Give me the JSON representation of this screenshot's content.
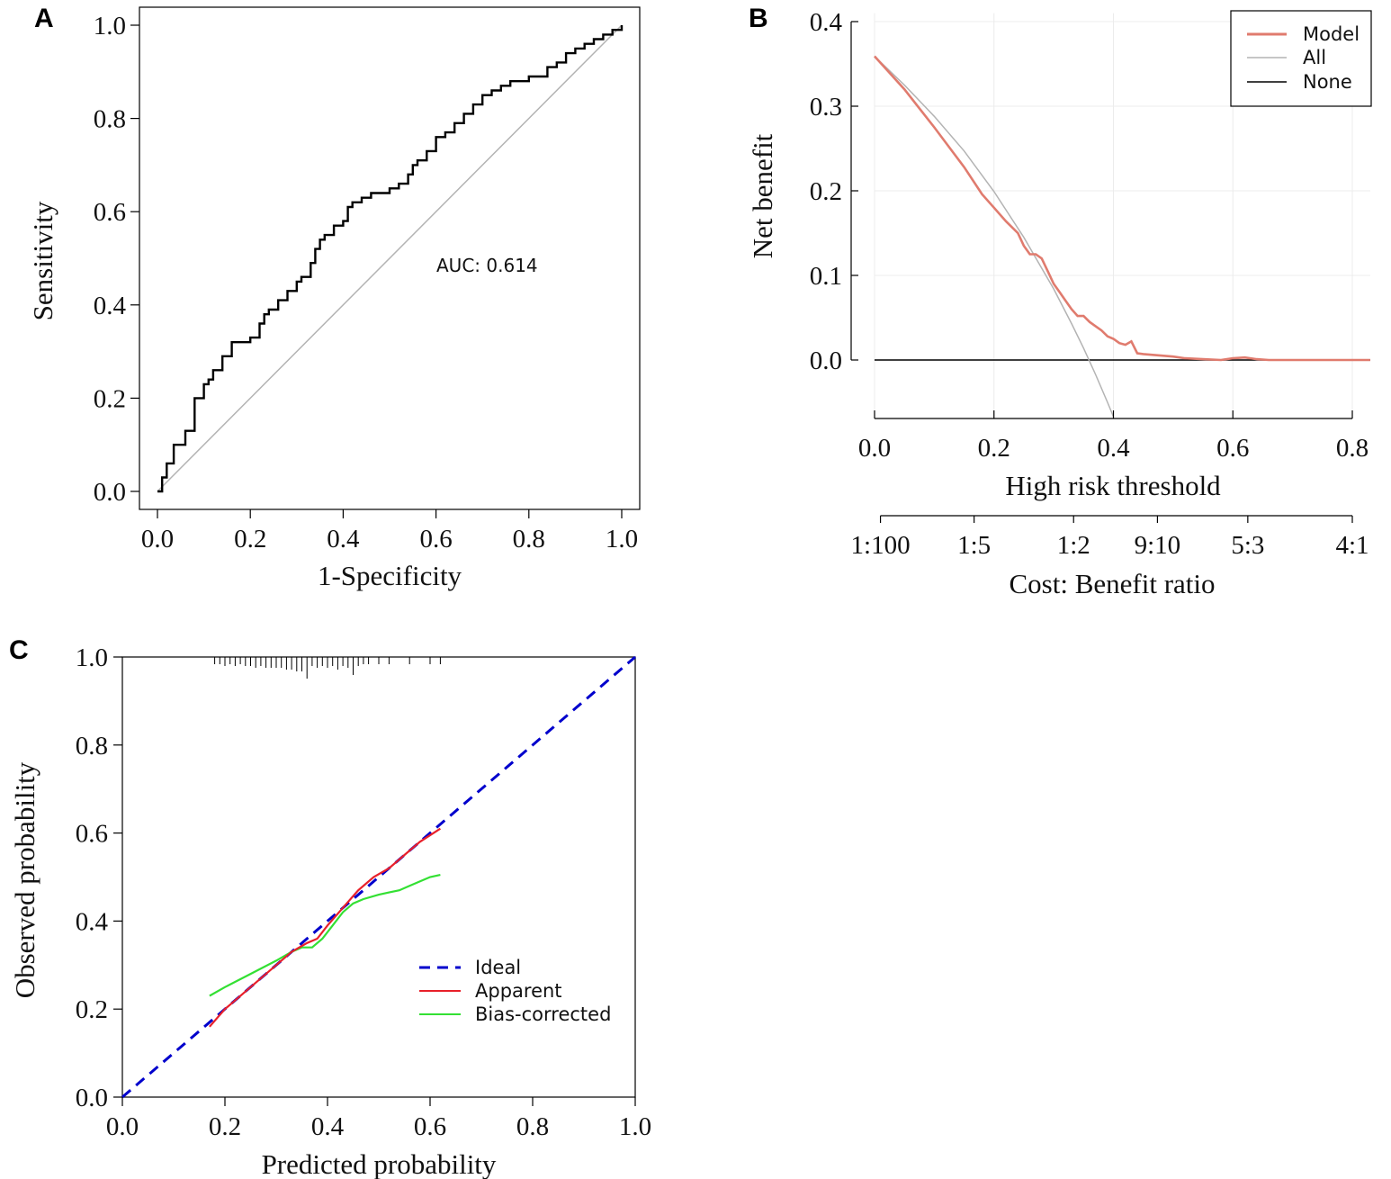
{
  "panels": {
    "A": {
      "letter": "A",
      "chart_data": {
        "type": "line",
        "xlabel": "1-Specificity",
        "ylabel": "Sensitivity",
        "xlim": [
          0,
          1
        ],
        "ylim": [
          0,
          1
        ],
        "xticks": [
          "0.0",
          "0.2",
          "0.4",
          "0.6",
          "0.8",
          "1.0"
        ],
        "yticks": [
          "0.0",
          "0.2",
          "0.4",
          "0.6",
          "0.8",
          "1.0"
        ],
        "annotation": "AUC: 0.614",
        "reference_line": {
          "x": [
            0,
            1
          ],
          "y": [
            0,
            1
          ],
          "color": "#b3b3b3"
        },
        "roc": {
          "color": "#000000",
          "x": [
            0,
            0.01,
            0.02,
            0.035,
            0.04,
            0.06,
            0.08,
            0.09,
            0.1,
            0.11,
            0.12,
            0.13,
            0.14,
            0.16,
            0.17,
            0.2,
            0.22,
            0.23,
            0.24,
            0.26,
            0.28,
            0.3,
            0.31,
            0.33,
            0.34,
            0.35,
            0.36,
            0.38,
            0.39,
            0.4,
            0.41,
            0.42,
            0.44,
            0.46,
            0.48,
            0.5,
            0.52,
            0.54,
            0.55,
            0.56,
            0.58,
            0.6,
            0.62,
            0.64,
            0.66,
            0.68,
            0.7,
            0.72,
            0.74,
            0.76,
            0.8,
            0.82,
            0.84,
            0.86,
            0.88,
            0.9,
            0.92,
            0.94,
            0.96,
            0.98,
            1.0
          ],
          "y": [
            0,
            0.03,
            0.06,
            0.1,
            0.1,
            0.13,
            0.2,
            0.2,
            0.23,
            0.24,
            0.26,
            0.26,
            0.29,
            0.32,
            0.32,
            0.33,
            0.36,
            0.38,
            0.39,
            0.41,
            0.43,
            0.45,
            0.46,
            0.49,
            0.52,
            0.54,
            0.55,
            0.57,
            0.57,
            0.58,
            0.61,
            0.62,
            0.63,
            0.64,
            0.64,
            0.65,
            0.66,
            0.68,
            0.7,
            0.71,
            0.73,
            0.76,
            0.77,
            0.79,
            0.81,
            0.83,
            0.85,
            0.86,
            0.87,
            0.88,
            0.89,
            0.89,
            0.91,
            0.92,
            0.94,
            0.95,
            0.96,
            0.97,
            0.98,
            0.99,
            1.0
          ]
        }
      }
    },
    "B": {
      "letter": "B",
      "chart_data": {
        "type": "line",
        "xlabel": "High risk threshold",
        "ylabel": "Net benefit",
        "xlim": [
          0,
          0.83
        ],
        "ylim": [
          -0.07,
          0.41
        ],
        "xticks": [
          "0.0",
          "0.2",
          "0.4",
          "0.6",
          "0.8"
        ],
        "yticks": [
          "0.0",
          "0.1",
          "0.2",
          "0.3",
          "0.4"
        ],
        "grid": true,
        "legend": {
          "position": "top-right",
          "entries": [
            "Model",
            "All",
            "None"
          ]
        },
        "secondary_axis": {
          "label": "Cost: Benefit ratio",
          "ticks": [
            {
              "label": "1:100",
              "threshold": 0.0099
            },
            {
              "label": "1:5",
              "threshold": 0.1667
            },
            {
              "label": "1:2",
              "threshold": 0.3333
            },
            {
              "label": "9:10",
              "threshold": 0.4737
            },
            {
              "label": "5:3",
              "threshold": 0.625
            },
            {
              "label": "4:1",
              "threshold": 0.8
            }
          ]
        },
        "series": [
          {
            "name": "Model",
            "color": "#e07b6e",
            "x": [
              0,
              0.05,
              0.1,
              0.15,
              0.18,
              0.2,
              0.22,
              0.24,
              0.25,
              0.26,
              0.27,
              0.28,
              0.29,
              0.3,
              0.31,
              0.32,
              0.33,
              0.34,
              0.35,
              0.36,
              0.37,
              0.38,
              0.39,
              0.4,
              0.41,
              0.42,
              0.43,
              0.44,
              0.45,
              0.5,
              0.52,
              0.55,
              0.58,
              0.6,
              0.62,
              0.64,
              0.66,
              0.7,
              0.75,
              0.8,
              0.83
            ],
            "y": [
              0.359,
              0.32,
              0.275,
              0.228,
              0.196,
              0.18,
              0.164,
              0.15,
              0.135,
              0.125,
              0.125,
              0.12,
              0.105,
              0.09,
              0.08,
              0.07,
              0.06,
              0.052,
              0.052,
              0.045,
              0.04,
              0.035,
              0.028,
              0.025,
              0.02,
              0.018,
              0.022,
              0.008,
              0.007,
              0.004,
              0.002,
              0.001,
              0,
              0.002,
              0.003,
              0.001,
              0,
              0,
              0,
              0,
              0
            ]
          },
          {
            "name": "All",
            "color": "#b3b3b3",
            "x": [
              0,
              0.05,
              0.1,
              0.15,
              0.2,
              0.25,
              0.3,
              0.33,
              0.35,
              0.37,
              0.39,
              0.4
            ],
            "y": [
              0.359,
              0.325,
              0.288,
              0.247,
              0.199,
              0.145,
              0.084,
              0.043,
              0.014,
              -0.017,
              -0.05,
              -0.067
            ]
          },
          {
            "name": "None",
            "color": "#000000",
            "x": [
              0,
              0.83
            ],
            "y": [
              0,
              0
            ]
          }
        ]
      }
    },
    "C": {
      "letter": "C",
      "chart_data": {
        "type": "line",
        "xlabel": "Predicted probability",
        "ylabel": "Observed probability",
        "xlim": [
          0,
          1
        ],
        "ylim": [
          0,
          1
        ],
        "xticks": [
          "0.0",
          "0.2",
          "0.4",
          "0.6",
          "0.8",
          "1.0"
        ],
        "yticks": [
          "0.0",
          "0.2",
          "0.4",
          "0.6",
          "0.8",
          "1.0"
        ],
        "legend": {
          "position": "center-right",
          "entries": [
            "Ideal",
            "Apparent",
            "Bias-corrected"
          ]
        },
        "rug_x": [
          0.18,
          0.19,
          0.2,
          0.21,
          0.22,
          0.23,
          0.24,
          0.25,
          0.26,
          0.27,
          0.28,
          0.29,
          0.3,
          0.31,
          0.32,
          0.33,
          0.34,
          0.35,
          0.36,
          0.37,
          0.38,
          0.39,
          0.4,
          0.41,
          0.42,
          0.43,
          0.44,
          0.45,
          0.46,
          0.47,
          0.48,
          0.5,
          0.52,
          0.56,
          0.6,
          0.62
        ],
        "rug_len": [
          0.2,
          0.2,
          0.3,
          0.2,
          0.3,
          0.2,
          0.3,
          0.3,
          0.4,
          0.3,
          0.4,
          0.4,
          0.4,
          0.4,
          0.5,
          0.5,
          0.6,
          0.6,
          1.0,
          0.3,
          0.4,
          0.3,
          0.4,
          0.3,
          0.5,
          0.3,
          0.4,
          0.8,
          0.3,
          0.2,
          0.2,
          0.2,
          0.2,
          0.2,
          0.2,
          0.2
        ],
        "series": [
          {
            "name": "Ideal",
            "color": "#0000cc",
            "dash": true,
            "x": [
              0,
              1
            ],
            "y": [
              0,
              1
            ]
          },
          {
            "name": "Apparent",
            "color": "#e8202a",
            "x": [
              0.17,
              0.2,
              0.25,
              0.3,
              0.33,
              0.36,
              0.38,
              0.4,
              0.43,
              0.46,
              0.49,
              0.52,
              0.55,
              0.58,
              0.62
            ],
            "y": [
              0.16,
              0.2,
              0.25,
              0.3,
              0.33,
              0.35,
              0.36,
              0.39,
              0.43,
              0.47,
              0.5,
              0.52,
              0.55,
              0.58,
              0.61
            ]
          },
          {
            "name": "Bias-corrected",
            "color": "#33e033",
            "x": [
              0.17,
              0.2,
              0.25,
              0.3,
              0.33,
              0.35,
              0.37,
              0.39,
              0.41,
              0.43,
              0.45,
              0.47,
              0.5,
              0.52,
              0.54,
              0.56,
              0.58,
              0.6,
              0.62
            ],
            "y": [
              0.23,
              0.25,
              0.28,
              0.31,
              0.33,
              0.34,
              0.34,
              0.36,
              0.39,
              0.42,
              0.44,
              0.45,
              0.46,
              0.465,
              0.47,
              0.48,
              0.49,
              0.5,
              0.505
            ]
          }
        ]
      }
    }
  }
}
